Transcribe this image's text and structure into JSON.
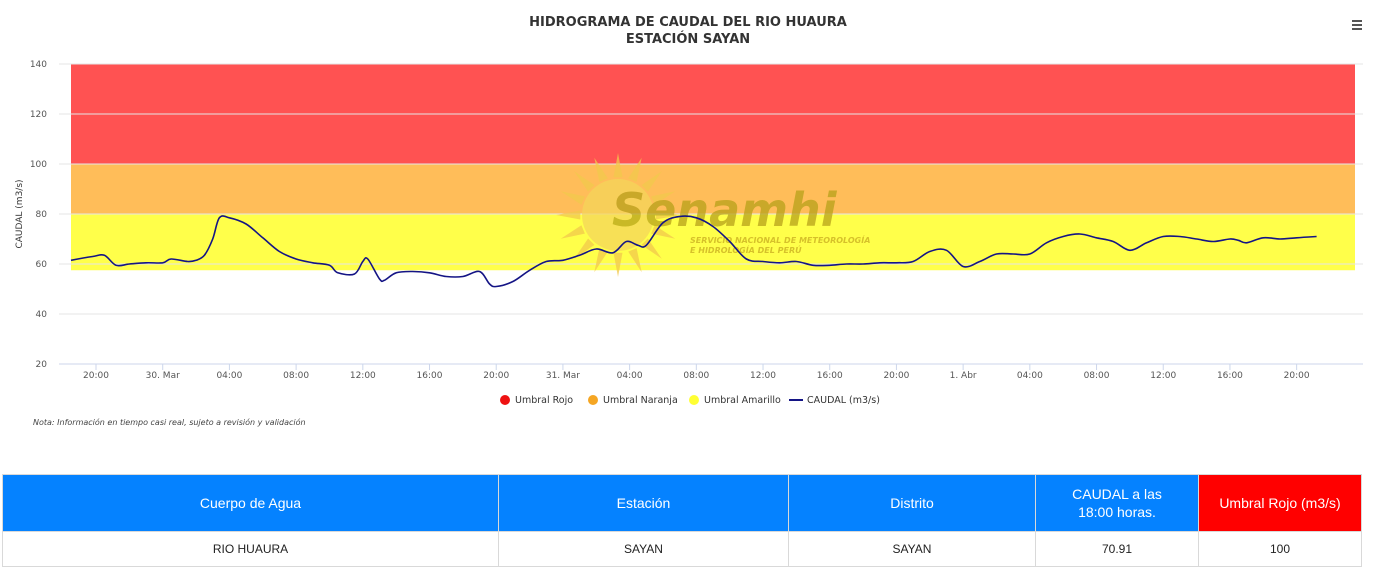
{
  "chart_data": {
    "type": "line",
    "title": "HIDROGRAMA DE CAUDAL DEL RIO HUAURA",
    "subtitle": "ESTACIÓN SAYAN",
    "ylabel": "CAUDAL (m3/s)",
    "xlabel": "",
    "ylim": [
      20,
      140
    ],
    "yticks": [
      20,
      40,
      60,
      80,
      100,
      120,
      140
    ],
    "xlim_hours": [
      -5.5,
      71.5
    ],
    "xticks": [
      {
        "hour": -4,
        "label": "20:00"
      },
      {
        "hour": 0,
        "label": "30. Mar"
      },
      {
        "hour": 4,
        "label": "04:00"
      },
      {
        "hour": 8,
        "label": "08:00"
      },
      {
        "hour": 12,
        "label": "12:00"
      },
      {
        "hour": 16,
        "label": "16:00"
      },
      {
        "hour": 20,
        "label": "20:00"
      },
      {
        "hour": 24,
        "label": "31. Mar"
      },
      {
        "hour": 28,
        "label": "04:00"
      },
      {
        "hour": 32,
        "label": "08:00"
      },
      {
        "hour": 36,
        "label": "12:00"
      },
      {
        "hour": 40,
        "label": "16:00"
      },
      {
        "hour": 44,
        "label": "20:00"
      },
      {
        "hour": 48,
        "label": "1. Abr"
      },
      {
        "hour": 52,
        "label": "04:00"
      },
      {
        "hour": 56,
        "label": "08:00"
      },
      {
        "hour": 60,
        "label": "12:00"
      },
      {
        "hour": 64,
        "label": "16:00"
      },
      {
        "hour": 68,
        "label": "20:00"
      }
    ],
    "grid": true,
    "legend_position": "bottom",
    "bands": [
      {
        "name": "Umbral Rojo",
        "from": 100,
        "to": 140,
        "color": "#ff5252",
        "legend_color": "#ee1111"
      },
      {
        "name": "Umbral Naranja",
        "from": 80,
        "to": 100,
        "color": "#ffbd59",
        "legend_color": "#f5a623"
      },
      {
        "name": "Umbral Amarillo",
        "from": 57.5,
        "to": 80,
        "color": "#ffff4a",
        "legend_color": "#ffff33"
      }
    ],
    "series": [
      {
        "name": "CAUDAL (m3/s)",
        "color": "#141485",
        "points": [
          [
            -5.5,
            61.5
          ],
          [
            -4.2,
            63
          ],
          [
            -3.5,
            63.5
          ],
          [
            -2.8,
            59.5
          ],
          [
            -2,
            60
          ],
          [
            -1,
            60.5
          ],
          [
            0,
            60.5
          ],
          [
            0.5,
            62
          ],
          [
            1.5,
            61
          ],
          [
            2,
            61.5
          ],
          [
            2.5,
            63.5
          ],
          [
            3,
            70
          ],
          [
            3.4,
            78.5
          ],
          [
            4,
            78.5
          ],
          [
            5,
            76
          ],
          [
            6,
            70.5
          ],
          [
            7,
            65
          ],
          [
            8,
            62
          ],
          [
            9,
            60.5
          ],
          [
            10,
            59.5
          ],
          [
            10.5,
            56.5
          ],
          [
            11.5,
            56
          ],
          [
            12,
            61
          ],
          [
            12.3,
            62
          ],
          [
            13,
            54
          ],
          [
            13.3,
            53.5
          ],
          [
            14,
            56.5
          ],
          [
            15,
            57
          ],
          [
            16,
            56.5
          ],
          [
            17,
            55
          ],
          [
            18,
            55
          ],
          [
            19,
            57
          ],
          [
            19.6,
            52
          ],
          [
            20,
            51
          ],
          [
            21,
            53
          ],
          [
            22,
            57.5
          ],
          [
            23,
            61
          ],
          [
            24,
            61.5
          ],
          [
            25,
            63.5
          ],
          [
            26,
            66
          ],
          [
            27,
            64.5
          ],
          [
            27.8,
            69
          ],
          [
            28.5,
            67.5
          ],
          [
            29,
            67.5
          ],
          [
            30,
            76.5
          ],
          [
            31,
            79
          ],
          [
            32,
            78.5
          ],
          [
            33,
            75
          ],
          [
            34,
            69
          ],
          [
            35,
            62
          ],
          [
            36,
            61
          ],
          [
            37,
            60.5
          ],
          [
            38,
            61
          ],
          [
            39,
            59.5
          ],
          [
            40,
            59.5
          ],
          [
            41,
            60
          ],
          [
            42,
            60
          ],
          [
            43,
            60.5
          ],
          [
            44,
            60.5
          ],
          [
            45,
            61
          ],
          [
            46,
            65
          ],
          [
            47,
            65.5
          ],
          [
            48,
            59
          ],
          [
            49,
            61
          ],
          [
            50,
            64
          ],
          [
            51,
            64
          ],
          [
            52,
            64
          ],
          [
            53,
            68.5
          ],
          [
            54,
            71
          ],
          [
            55,
            72
          ],
          [
            56,
            70.5
          ],
          [
            57,
            69
          ],
          [
            58,
            65.5
          ],
          [
            59,
            68.5
          ],
          [
            60,
            71
          ],
          [
            61,
            71
          ],
          [
            62,
            70
          ],
          [
            63,
            69
          ],
          [
            64,
            70
          ],
          [
            64.5,
            69.5
          ],
          [
            65,
            68.5
          ],
          [
            66,
            70.5
          ],
          [
            67,
            70
          ],
          [
            68,
            70.5
          ],
          [
            69.2,
            71
          ]
        ]
      }
    ]
  },
  "watermark": {
    "brand": "Senamhi",
    "line1": "SERVICIO NACIONAL DE METEOROLOGÍA",
    "line2": "E HIDROLOGÍA DEL PERÚ",
    "icon": "sun-logo-icon"
  },
  "note": "Nota: Información en tiempo casi real, sujeto a revisión y validación",
  "menu": {
    "icon": "hamburger-menu-icon"
  },
  "table": {
    "headers": {
      "cuerpo": "Cuerpo de Agua",
      "estacion": "Estación",
      "distrito": "Distrito",
      "caudal_line1": "CAUDAL a las",
      "caudal_line2": "18:00 horas.",
      "umbral": "Umbral Rojo (m3/s)"
    },
    "row": {
      "cuerpo": "RIO HUAURA",
      "estacion": "SAYAN",
      "distrito": "SAYAN",
      "caudal": "70.91",
      "umbral": "100"
    }
  }
}
